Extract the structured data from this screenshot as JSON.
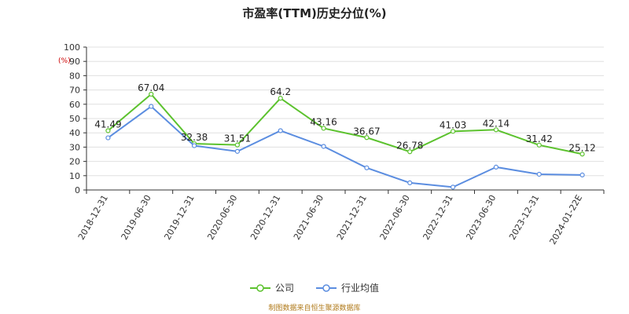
{
  "chart_data": {
    "type": "line",
    "title": "市盈率(TTM)历史分位(%)",
    "ylabel": "(%)",
    "categories": [
      "2018-12-31",
      "2019-06-30",
      "2019-12-31",
      "2020-06-30",
      "2020-12-31",
      "2021-06-30",
      "2021-12-31",
      "2022-06-30",
      "2022-12-31",
      "2023-06-30",
      "2023-12-31",
      "2024-01-22E"
    ],
    "yticks": [
      "0",
      "10",
      "20",
      "30",
      "40",
      "50",
      "60",
      "70",
      "80",
      "90",
      "100"
    ],
    "ylim": [
      0,
      100
    ],
    "grid": true,
    "legend_position": "bottom",
    "series": [
      {
        "name": "公司",
        "color": "#5cc22e",
        "values": [
          41.49,
          67.04,
          32.38,
          31.51,
          64.2,
          43.16,
          36.67,
          26.78,
          41.03,
          42.14,
          31.42,
          25.12
        ],
        "labels": [
          "41.49",
          "67.04",
          "32.38",
          "31.51",
          "64.2",
          "43.16",
          "36.67",
          "26.78",
          "41.03",
          "42.14",
          "31.42",
          "25.12"
        ]
      },
      {
        "name": "行业均值",
        "color": "#5b8de0",
        "values": [
          36.5,
          58.5,
          31.0,
          27.0,
          41.5,
          30.5,
          15.5,
          5.0,
          2.0,
          16.0,
          11.0,
          10.5
        ]
      }
    ]
  },
  "footer": {
    "source": "制图数据来自恒生聚源数据库"
  }
}
